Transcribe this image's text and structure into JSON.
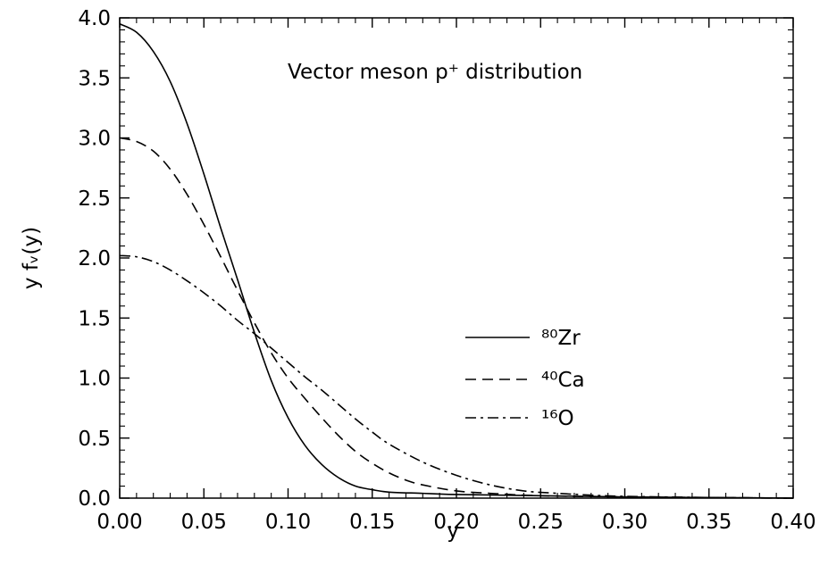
{
  "chart_data": {
    "type": "line",
    "title": "Vector meson p⁺ distribution",
    "xlabel": "y",
    "ylabel": "y fᵥ(y)",
    "xlim": [
      0.0,
      0.4
    ],
    "ylim": [
      0.0,
      4.0
    ],
    "x_ticks": [
      "0.00",
      "0.05",
      "0.10",
      "0.15",
      "0.20",
      "0.25",
      "0.30",
      "0.35",
      "0.40"
    ],
    "y_ticks": [
      "0.0",
      "0.5",
      "1.0",
      "1.5",
      "2.0",
      "2.5",
      "3.0",
      "3.5",
      "4.0"
    ],
    "grid": false,
    "legend_position": "center-right",
    "series": [
      {
        "name": "⁸⁰Zr",
        "style": "solid",
        "x": [
          0.0,
          0.01,
          0.02,
          0.03,
          0.04,
          0.05,
          0.06,
          0.07,
          0.08,
          0.09,
          0.1,
          0.11,
          0.12,
          0.13,
          0.14,
          0.15,
          0.16,
          0.18,
          0.2,
          0.25,
          0.3,
          0.35,
          0.4
        ],
        "y": [
          3.95,
          3.88,
          3.72,
          3.47,
          3.12,
          2.7,
          2.25,
          1.82,
          1.38,
          0.98,
          0.67,
          0.44,
          0.28,
          0.17,
          0.1,
          0.07,
          0.05,
          0.04,
          0.03,
          0.02,
          0.01,
          0.005,
          0.0
        ]
      },
      {
        "name": "⁴⁰Ca",
        "style": "dashed",
        "x": [
          0.0,
          0.01,
          0.02,
          0.03,
          0.04,
          0.05,
          0.06,
          0.07,
          0.08,
          0.09,
          0.1,
          0.11,
          0.12,
          0.13,
          0.14,
          0.15,
          0.16,
          0.17,
          0.18,
          0.2,
          0.22,
          0.25,
          0.3,
          0.35,
          0.4
        ],
        "y": [
          3.0,
          2.97,
          2.89,
          2.74,
          2.53,
          2.28,
          2.01,
          1.73,
          1.46,
          1.21,
          1.0,
          0.83,
          0.67,
          0.52,
          0.39,
          0.29,
          0.21,
          0.15,
          0.11,
          0.06,
          0.04,
          0.02,
          0.01,
          0.005,
          0.0
        ]
      },
      {
        "name": "¹⁶O",
        "style": "dash-dot",
        "x": [
          0.0,
          0.01,
          0.02,
          0.03,
          0.04,
          0.05,
          0.06,
          0.07,
          0.08,
          0.09,
          0.1,
          0.11,
          0.12,
          0.13,
          0.14,
          0.15,
          0.16,
          0.18,
          0.2,
          0.22,
          0.24,
          0.26,
          0.28,
          0.3,
          0.35,
          0.4
        ],
        "y": [
          2.02,
          2.01,
          1.97,
          1.9,
          1.81,
          1.71,
          1.6,
          1.48,
          1.37,
          1.25,
          1.13,
          1.01,
          0.9,
          0.78,
          0.66,
          0.55,
          0.45,
          0.3,
          0.19,
          0.11,
          0.06,
          0.04,
          0.025,
          0.015,
          0.005,
          0.0
        ]
      }
    ]
  }
}
